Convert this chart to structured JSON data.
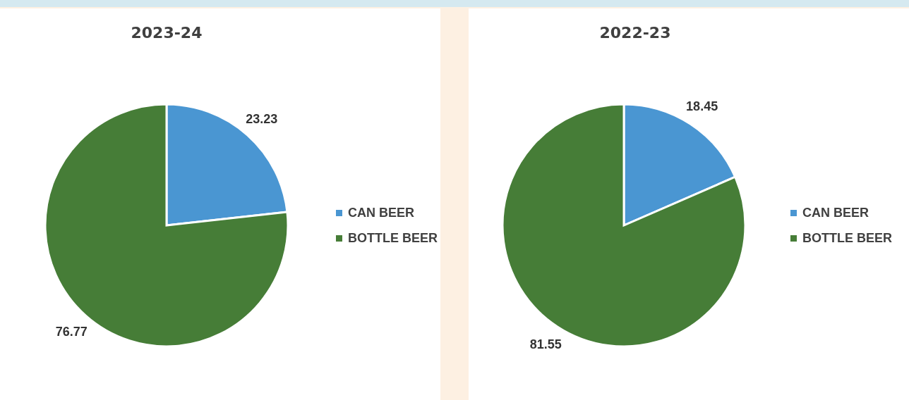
{
  "chart_data": [
    {
      "type": "pie",
      "title": "2023-24",
      "categories": [
        "CAN BEER",
        "BOTTLE BEER"
      ],
      "values": [
        23.23,
        76.77
      ],
      "colors": [
        "#4a96d2",
        "#467d37"
      ],
      "data_labels": true,
      "legend": "right"
    },
    {
      "type": "pie",
      "title": "2022-23",
      "categories": [
        "CAN BEER",
        "BOTTLE BEER"
      ],
      "values": [
        18.45,
        81.55
      ],
      "colors": [
        "#4a96d2",
        "#467d37"
      ],
      "data_labels": true,
      "legend": "right"
    }
  ]
}
